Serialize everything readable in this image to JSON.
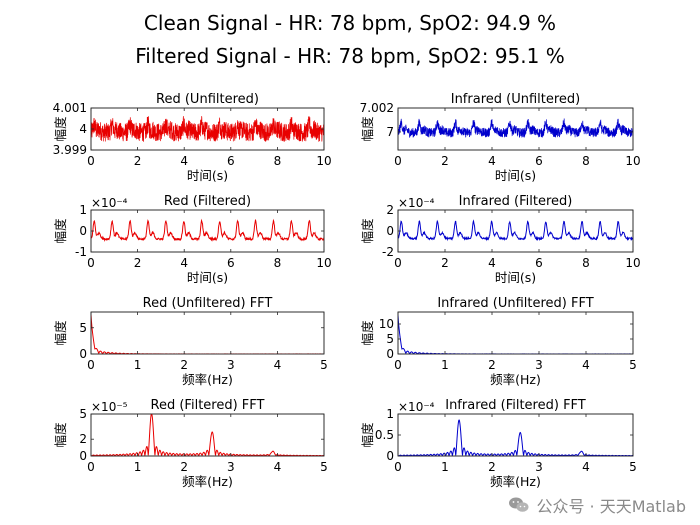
{
  "suptitle": [
    "Clean Signal - HR: 78 bpm, SpO2: 94.9 %",
    "Filtered Signal - HR: 78 bpm, SpO2: 95.1 %"
  ],
  "watermark": "公众号 · 天天Matlab",
  "colors": {
    "red": "#e80000",
    "blue": "#0000cc",
    "axis": "#262626"
  },
  "chart_data": [
    {
      "id": "red_unf",
      "type": "line",
      "title": "Red (Unfiltered)",
      "xlabel": "时间(s)",
      "ylabel": "幅度",
      "xlim": [
        0,
        10
      ],
      "ylim": [
        3.999,
        4.001
      ],
      "xticks": [
        0,
        2,
        4,
        6,
        8,
        10
      ],
      "yticks": [
        3.999,
        4,
        4.001
      ],
      "ytick_labels": [
        "3.999",
        "4",
        "4.001"
      ],
      "exponent": "",
      "series": [
        {
          "color": "red",
          "kind": "ppg_noisy",
          "hr_hz": 1.3,
          "offset": 4.0,
          "amp": 0.00035,
          "noise": 0.00045
        }
      ]
    },
    {
      "id": "ir_unf",
      "type": "line",
      "title": "Infrared (Unfiltered)",
      "xlabel": "时间(s)",
      "ylabel": "幅度",
      "xlim": [
        0,
        10
      ],
      "ylim": [
        6.9985,
        7.002
      ],
      "xticks": [
        0,
        2,
        4,
        6,
        8,
        10
      ],
      "yticks": [
        7,
        7.002
      ],
      "ytick_labels": [
        "7",
        "7.002"
      ],
      "exponent": "",
      "series": [
        {
          "color": "blue",
          "kind": "ppg_noisy",
          "hr_hz": 1.3,
          "offset": 7.0003,
          "amp": 0.0008,
          "noise": 0.0004
        }
      ]
    },
    {
      "id": "red_f",
      "type": "line",
      "title": "Red (Filtered)",
      "xlabel": "时间(s)",
      "ylabel": "幅度",
      "xlim": [
        0,
        10
      ],
      "ylim": [
        -1,
        1
      ],
      "xticks": [
        0,
        2,
        4,
        6,
        8,
        10
      ],
      "yticks": [
        -1,
        0,
        1
      ],
      "ytick_labels": [
        "-1",
        "0",
        "1"
      ],
      "exponent": "×10⁻⁴",
      "series": [
        {
          "color": "red",
          "kind": "ppg_clean",
          "hr_hz": 1.3,
          "offset": 0,
          "amp": 0.85,
          "noise": 0.05
        }
      ]
    },
    {
      "id": "ir_f",
      "type": "line",
      "title": "Infrared (Filtered)",
      "xlabel": "时间(s)",
      "ylabel": "幅度",
      "xlim": [
        0,
        10
      ],
      "ylim": [
        -2,
        2
      ],
      "xticks": [
        0,
        2,
        4,
        6,
        8,
        10
      ],
      "yticks": [
        -2,
        0,
        2
      ],
      "ytick_labels": [
        "-2",
        "0",
        "2"
      ],
      "exponent": "×10⁻⁴",
      "series": [
        {
          "color": "blue",
          "kind": "ppg_clean",
          "hr_hz": 1.3,
          "offset": 0,
          "amp": 1.6,
          "noise": 0.08
        }
      ]
    },
    {
      "id": "red_unf_fft",
      "type": "line",
      "title": "Red (Unfiltered) FFT",
      "xlabel": "频率(Hz)",
      "ylabel": "幅度",
      "xlim": [
        0,
        5
      ],
      "ylim": [
        0,
        8
      ],
      "xticks": [
        0,
        1,
        2,
        3,
        4,
        5
      ],
      "yticks": [
        0,
        5
      ],
      "ytick_labels": [
        "0",
        "5"
      ],
      "exponent": "",
      "series": [
        {
          "color": "red",
          "kind": "fft_dc",
          "peak": 7.5
        }
      ]
    },
    {
      "id": "ir_unf_fft",
      "type": "line",
      "title": "Infrared (Unfiltered) FFT",
      "xlabel": "频率(Hz)",
      "ylabel": "幅度",
      "xlim": [
        0,
        5
      ],
      "ylim": [
        0,
        14
      ],
      "xticks": [
        0,
        1,
        2,
        3,
        4,
        5
      ],
      "yticks": [
        0,
        5,
        10
      ],
      "ytick_labels": [
        "0",
        "5",
        "10"
      ],
      "exponent": "",
      "series": [
        {
          "color": "blue",
          "kind": "fft_dc",
          "peak": 13
        }
      ]
    },
    {
      "id": "red_f_fft",
      "type": "line",
      "title": "Red (Filtered) FFT",
      "xlabel": "频率(Hz)",
      "ylabel": "幅度",
      "xlim": [
        0,
        5
      ],
      "ylim": [
        0,
        5
      ],
      "xticks": [
        0,
        1,
        2,
        3,
        4,
        5
      ],
      "yticks": [
        0,
        2,
        5
      ],
      "ytick_labels": [
        "0",
        "2",
        "5"
      ],
      "exponent": "×10⁻⁵",
      "series": [
        {
          "color": "red",
          "kind": "fft_peaks",
          "peaks": [
            [
              1.3,
              5.0
            ],
            [
              2.6,
              2.8
            ],
            [
              3.9,
              0.5
            ]
          ]
        }
      ]
    },
    {
      "id": "ir_f_fft",
      "type": "line",
      "title": "Infrared (Filtered) FFT",
      "xlabel": "频率(Hz)",
      "ylabel": "幅度",
      "xlim": [
        0,
        5
      ],
      "ylim": [
        0,
        1
      ],
      "xticks": [
        0,
        1,
        2,
        3,
        4,
        5
      ],
      "yticks": [
        0,
        0.5,
        1
      ],
      "ytick_labels": [
        "0",
        "0.5",
        "1"
      ],
      "exponent": "×10⁻⁴",
      "series": [
        {
          "color": "blue",
          "kind": "fft_peaks",
          "peaks": [
            [
              1.3,
              0.85
            ],
            [
              2.6,
              0.55
            ],
            [
              3.9,
              0.1
            ]
          ]
        }
      ]
    }
  ]
}
